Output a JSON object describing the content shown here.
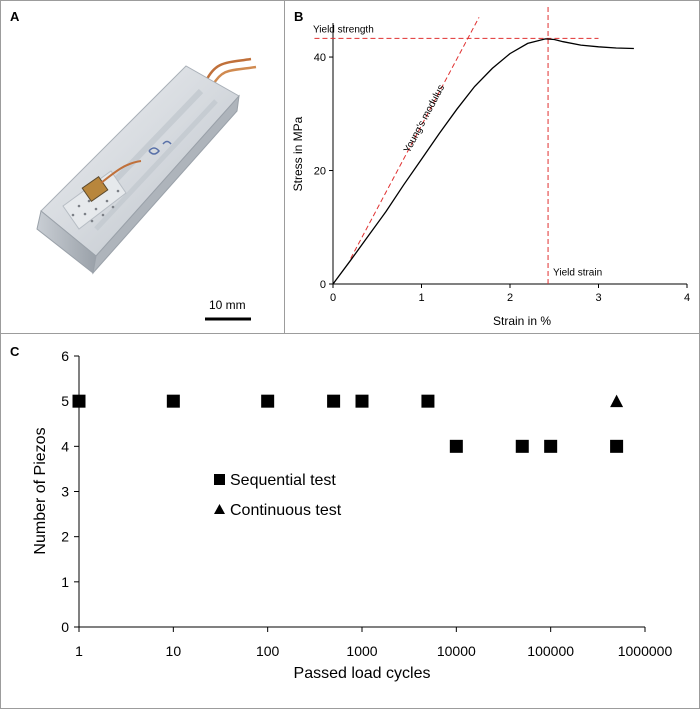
{
  "panels": {
    "a": {
      "letter": "A",
      "scale_bar_label": "10 mm"
    },
    "b": {
      "letter": "B"
    },
    "c": {
      "letter": "C"
    }
  },
  "colors": {
    "reference_lines": "#e03030",
    "curve": "#000000",
    "frame": "#9c9c9c"
  },
  "chart_data": [
    {
      "panel": "B",
      "type": "line",
      "xlabel": "Strain in %",
      "ylabel": "Stress in MPa",
      "xlim": [
        0,
        4
      ],
      "ylim": [
        0,
        46
      ],
      "xticks": [
        0,
        1,
        2,
        3,
        4
      ],
      "yticks": [
        0,
        20,
        40
      ],
      "series": [
        {
          "name": "Stress-strain curve",
          "x": [
            0,
            0.2,
            0.4,
            0.6,
            0.8,
            1.0,
            1.2,
            1.4,
            1.6,
            1.8,
            2.0,
            2.2,
            2.4,
            2.5,
            2.6,
            2.8,
            3.0,
            3.2,
            3.4
          ],
          "y": [
            0,
            4.2,
            8.5,
            12.8,
            17.5,
            22,
            26.5,
            30.8,
            34.8,
            38,
            40.6,
            42.4,
            43.2,
            43.1,
            42.7,
            42.1,
            41.8,
            41.6,
            41.5
          ]
        }
      ],
      "annotations": [
        {
          "text": "Yield strength",
          "kind": "hline",
          "y": 43.3,
          "x_from": -0.3,
          "x_to": 3.0
        },
        {
          "text": "Young's modulus",
          "kind": "line",
          "x1": 0.2,
          "y1": 4.5,
          "x2": 1.65,
          "y2": 47
        },
        {
          "text": "Yield strain",
          "kind": "vline",
          "x": 2.43,
          "y_from": 0,
          "y_to": 49
        }
      ]
    },
    {
      "panel": "C",
      "type": "scatter",
      "xlabel": "Passed load cycles",
      "ylabel": "Number of Piezos",
      "xscale": "log",
      "xlim": [
        1,
        1000000
      ],
      "ylim": [
        0,
        6
      ],
      "xticks": [
        "1",
        "10",
        "100",
        "1000",
        "10000",
        "100000",
        "1000000"
      ],
      "yticks": [
        "0",
        "1",
        "2",
        "3",
        "4",
        "5",
        "6"
      ],
      "series": [
        {
          "name": "Sequential test",
          "marker": "square",
          "points": [
            [
              1,
              5
            ],
            [
              10,
              5
            ],
            [
              100,
              5
            ],
            [
              500,
              5
            ],
            [
              1000,
              5
            ],
            [
              5000,
              5
            ],
            [
              10000,
              4
            ],
            [
              50000,
              4
            ],
            [
              100000,
              4
            ],
            [
              500000,
              4
            ]
          ]
        },
        {
          "name": "Continuous test",
          "marker": "triangle",
          "points": [
            [
              500000,
              5
            ]
          ]
        }
      ],
      "legend": "center-left"
    }
  ]
}
